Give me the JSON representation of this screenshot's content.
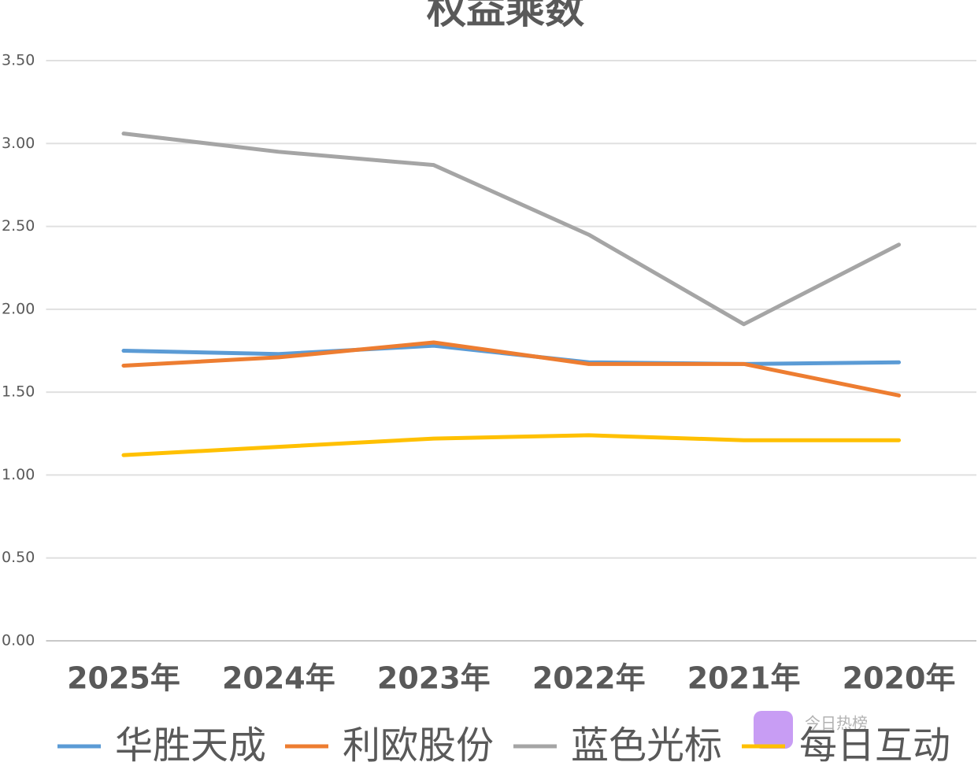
{
  "chart_data": {
    "type": "line",
    "title": "权益乘数",
    "categories": [
      "2025年",
      "2024年",
      "2023年",
      "2022年",
      "2021年",
      "2020年"
    ],
    "series": [
      {
        "name": "华胜天成",
        "color": "#5b9bd5",
        "values": [
          1.75,
          1.73,
          1.78,
          1.68,
          1.67,
          1.68
        ]
      },
      {
        "name": "利欧股份",
        "color": "#ed7d31",
        "values": [
          1.66,
          1.71,
          1.8,
          1.67,
          1.67,
          1.48
        ]
      },
      {
        "name": "蓝色光标",
        "color": "#a5a5a5",
        "values": [
          3.06,
          2.95,
          2.87,
          2.45,
          1.91,
          2.39
        ]
      },
      {
        "name": "每日互动",
        "color": "#ffc000",
        "values": [
          1.12,
          1.17,
          1.22,
          1.24,
          1.21,
          1.21
        ]
      }
    ],
    "ylim": [
      0,
      3.5
    ],
    "yticks": [
      {
        "value": 0,
        "label": "0.00"
      },
      {
        "value": 0.5,
        "label": "0.50"
      },
      {
        "value": 1,
        "label": "1.00"
      },
      {
        "value": 1.5,
        "label": "1.50"
      },
      {
        "value": 2,
        "label": "2.00"
      },
      {
        "value": 2.5,
        "label": "2.50"
      },
      {
        "value": 3,
        "label": "3.00"
      },
      {
        "value": 3.5,
        "label": "3.50"
      }
    ],
    "grid": true,
    "watermark": "今日热榜"
  }
}
